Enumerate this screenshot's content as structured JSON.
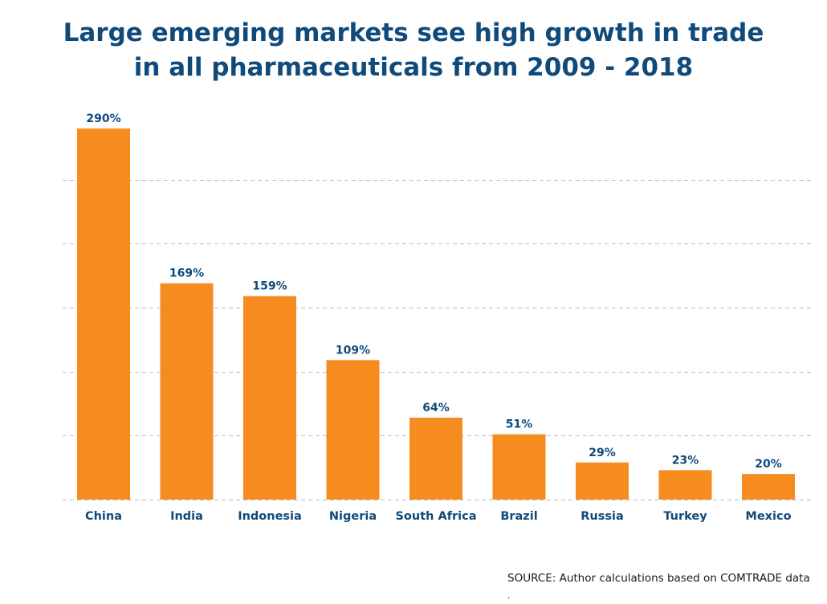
{
  "title_lines": [
    "Large emerging markets see high growth in trade",
    "in all pharmaceuticals from 2009 - 2018"
  ],
  "source": "SOURCE: Author calculations based on COMTRADE data",
  "source_mark": ".",
  "colors": {
    "bar": "#f68b1f",
    "title": "#0f4a7b",
    "label": "#0f4a7b",
    "grid": "#bbbbbb"
  },
  "chart_data": {
    "type": "bar",
    "categories": [
      "China",
      "India",
      "Indonesia",
      "Nigeria",
      "South Africa",
      "Brazil",
      "Russia",
      "Turkey",
      "Mexico"
    ],
    "values": [
      290,
      169,
      159,
      109,
      64,
      51,
      29,
      23,
      20
    ],
    "data_labels": [
      "290%",
      "169%",
      "159%",
      "109%",
      "64%",
      "51%",
      "29%",
      "23%",
      "20%"
    ],
    "ylim": [
      0,
      300
    ],
    "grid": true,
    "gridline_values": [
      50,
      100,
      150,
      200,
      250
    ],
    "xlabel": "",
    "ylabel": ""
  }
}
